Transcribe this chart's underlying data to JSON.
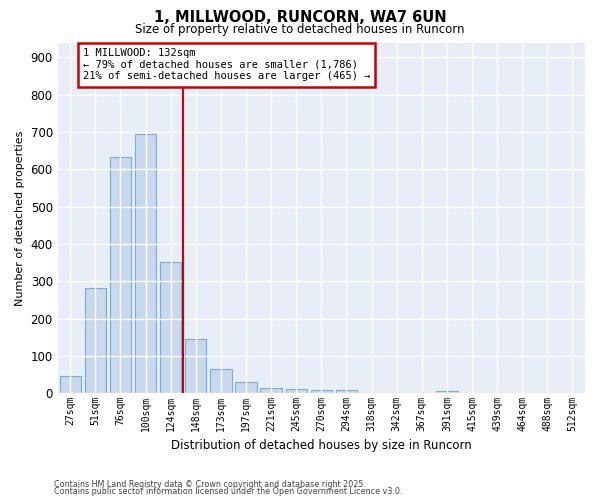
{
  "title1": "1, MILLWOOD, RUNCORN, WA7 6UN",
  "title2": "Size of property relative to detached houses in Runcorn",
  "xlabel": "Distribution of detached houses by size in Runcorn",
  "ylabel": "Number of detached properties",
  "categories": [
    "27sqm",
    "51sqm",
    "76sqm",
    "100sqm",
    "124sqm",
    "148sqm",
    "173sqm",
    "197sqm",
    "221sqm",
    "245sqm",
    "270sqm",
    "294sqm",
    "318sqm",
    "342sqm",
    "367sqm",
    "391sqm",
    "415sqm",
    "439sqm",
    "464sqm",
    "488sqm",
    "512sqm"
  ],
  "values": [
    45,
    283,
    632,
    695,
    352,
    145,
    65,
    30,
    13,
    10,
    8,
    8,
    0,
    0,
    0,
    5,
    0,
    0,
    0,
    0,
    0
  ],
  "bar_color": "#c8d8ee",
  "bar_edge_color": "#7aadd4",
  "background_color": "#ffffff",
  "plot_bg_color": "#e8eef8",
  "grid_color": "#ffffff",
  "vline_x": 4.5,
  "vline_color": "#cc0000",
  "annotation_title": "1 MILLWOOD: 132sqm",
  "annotation_line1": "← 79% of detached houses are smaller (1,786)",
  "annotation_line2": "21% of semi-detached houses are larger (465) →",
  "annotation_box_color": "#cc0000",
  "footer1": "Contains HM Land Registry data © Crown copyright and database right 2025.",
  "footer2": "Contains public sector information licensed under the Open Government Licence v3.0.",
  "ylim": [
    0,
    940
  ],
  "yticks": [
    0,
    100,
    200,
    300,
    400,
    500,
    600,
    700,
    800,
    900
  ]
}
